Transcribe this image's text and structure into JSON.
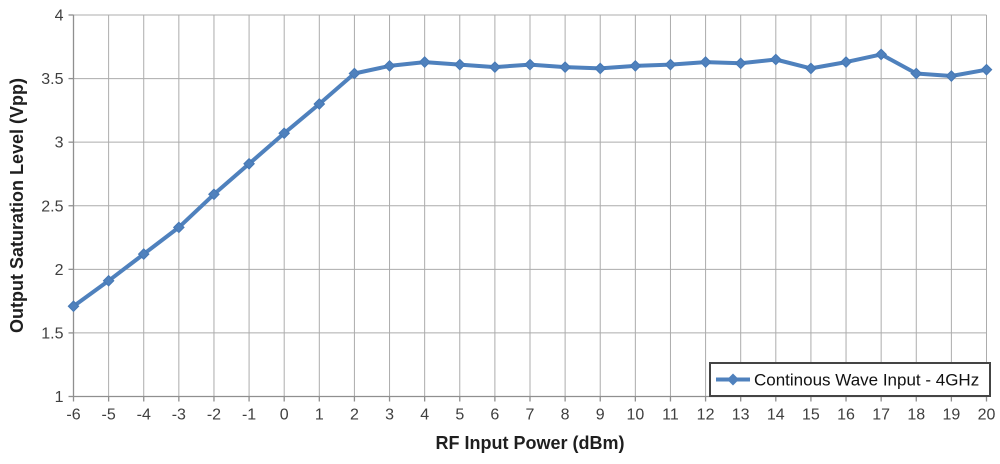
{
  "chart_data": {
    "type": "line",
    "title": "",
    "xlabel": "RF Input Power (dBm)",
    "ylabel": "Output Saturation Level (Vpp)",
    "xlim": [
      -6,
      20
    ],
    "ylim": [
      1,
      4
    ],
    "grid": true,
    "legend_position": "bottom-right",
    "xticks": [
      -6,
      -5,
      -4,
      -3,
      -2,
      -1,
      0,
      1,
      2,
      3,
      4,
      5,
      6,
      7,
      8,
      9,
      10,
      11,
      12,
      13,
      14,
      15,
      16,
      17,
      18,
      19,
      20
    ],
    "xtick_labels": [
      "-6",
      "-5",
      "-4",
      "-3",
      "-2",
      "-1",
      "0",
      "1",
      "2",
      "3",
      "4",
      "5",
      "6",
      "7",
      "8",
      "9",
      "10",
      "11",
      "12",
      "13",
      "14",
      "15",
      "16",
      "17",
      "18",
      "19",
      "20"
    ],
    "yticks": [
      1,
      1.5,
      2,
      2.5,
      3,
      3.5,
      4
    ],
    "ytick_labels": [
      "1",
      "1.5",
      "2",
      "2.5",
      "3",
      "3.5",
      "4"
    ],
    "series": [
      {
        "name": "Continous Wave Input - 4GHz",
        "marker": "diamond",
        "x": [
          -6,
          -5,
          -4,
          -3,
          -2,
          -1,
          0,
          1,
          2,
          3,
          4,
          5,
          6,
          7,
          8,
          9,
          10,
          11,
          12,
          13,
          14,
          15,
          16,
          17,
          18,
          19,
          20
        ],
        "values": [
          1.71,
          1.91,
          2.12,
          2.33,
          2.59,
          2.83,
          3.07,
          3.3,
          3.54,
          3.6,
          3.63,
          3.61,
          3.59,
          3.61,
          3.59,
          3.58,
          3.6,
          3.61,
          3.63,
          3.62,
          3.65,
          3.58,
          3.63,
          3.69,
          3.54,
          3.52,
          3.57
        ]
      }
    ],
    "colors": {
      "line": "#4f81bd",
      "marker": "#4678b4",
      "gridline": "#acacac",
      "axis": "#8f8f8f",
      "tick_label": "#3f3f3f",
      "axis_title": "#1f1f1f",
      "legend_border": "#444444",
      "legend_bg": "#ffffff",
      "legend_text": "#111111",
      "background": "#ffffff"
    }
  }
}
